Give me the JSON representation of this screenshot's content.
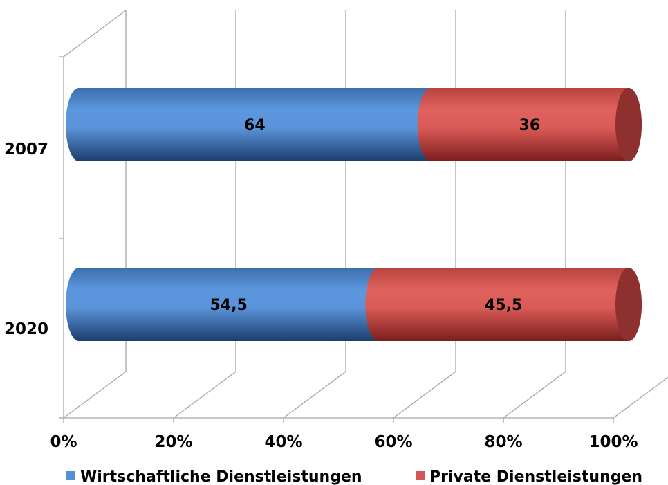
{
  "chart_data": {
    "type": "bar",
    "orientation": "horizontal",
    "stacked": "percent",
    "style": "3d-cylinder",
    "categories": [
      "2007",
      "2020"
    ],
    "series": [
      {
        "name": "Wirtschaftliche Dienstleistungen",
        "values": [
          64,
          54.5
        ],
        "labels": [
          "64",
          "54,5"
        ],
        "color": "#5590d6"
      },
      {
        "name": "Private Dienstleistungen",
        "values": [
          36,
          45.5
        ],
        "labels": [
          "36",
          "45,5"
        ],
        "color": "#d35754"
      }
    ],
    "xlim": [
      0,
      100
    ],
    "xticks": [
      "0%",
      "20%",
      "40%",
      "60%",
      "80%",
      "100%"
    ],
    "grid": true,
    "legend": "bottom",
    "title": "",
    "xlabel": "",
    "ylabel": ""
  }
}
